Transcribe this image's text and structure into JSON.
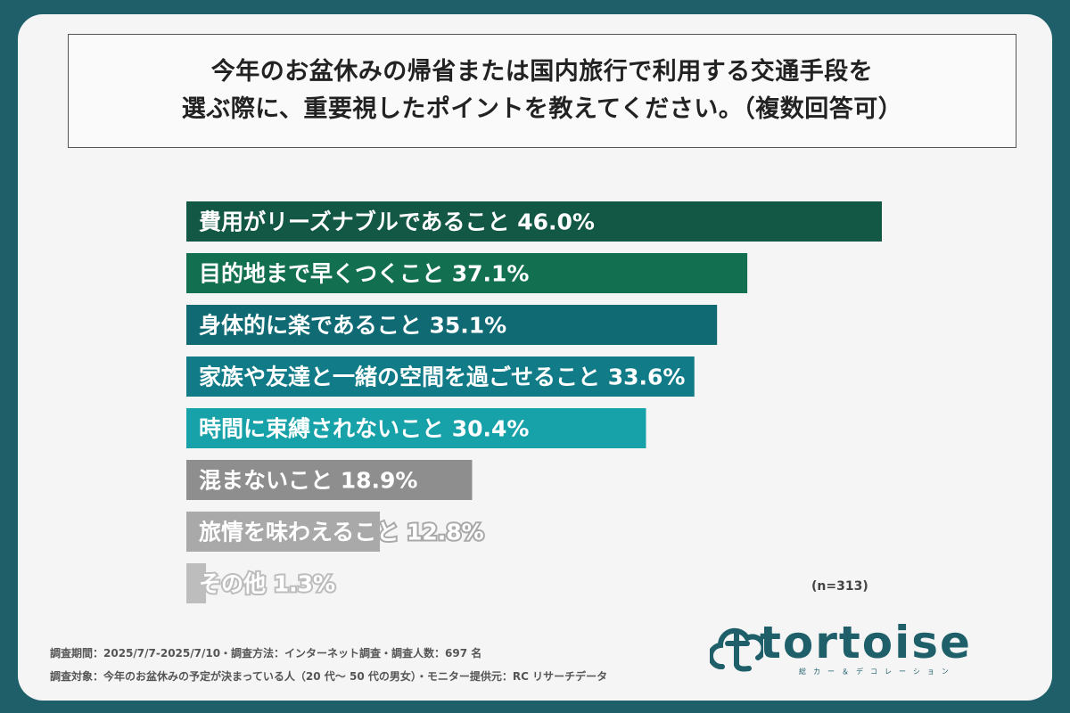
{
  "title": {
    "line1": "今年のお盆休みの帰省または国内旅行で利用する交通手段を",
    "line2": "選ぶ際に、重要視したポイントを教えてください。（複数回答可）"
  },
  "n_label": "(n=313)",
  "footer": {
    "line1": "調査期間：2025/7/7-2025/7/10・調査方法：インターネット調査・調査人数：697 名",
    "line2": "調査対象：今年のお盆休みの予定が決まっている人（20 代～ 50 代の男女）・モニター提供元：RC リサーチデータ"
  },
  "logo": {
    "text": "tortoise",
    "sub": "総カー＆デコレーション",
    "icon": "cloud-t-logo-icon"
  },
  "colors": {
    "background": "#1e5f6a",
    "card": "#f5f5f5",
    "bars": [
      "#135745",
      "#127050",
      "#106a74",
      "#117b88",
      "#17a1a8",
      "#8e8e8e",
      "#a9a9a9",
      "#bdbdbd"
    ]
  },
  "chart_data": {
    "type": "bar",
    "orientation": "horizontal",
    "title": "今年のお盆休みの帰省または国内旅行で利用する交通手段を選ぶ際に、重要視したポイントを教えてください。（複数回答可）",
    "categories": [
      "費用がリーズナブルであること",
      "目的地まで早くつくこと",
      "身体的に楽であること",
      "家族や友達と一緒の空間を過ごせること",
      "時間に束縛されないこと",
      "混まないこと",
      "旅情を味わえること",
      "その他"
    ],
    "values": [
      46.0,
      37.1,
      35.1,
      33.6,
      30.4,
      18.9,
      12.8,
      1.3
    ],
    "value_labels": [
      "46.0%",
      "37.1%",
      "35.1%",
      "33.6%",
      "30.4%",
      "18.9%",
      "12.8%",
      "1.3%"
    ],
    "unit": "%",
    "xlim": [
      0,
      48
    ],
    "grid": false,
    "legend": "none"
  }
}
